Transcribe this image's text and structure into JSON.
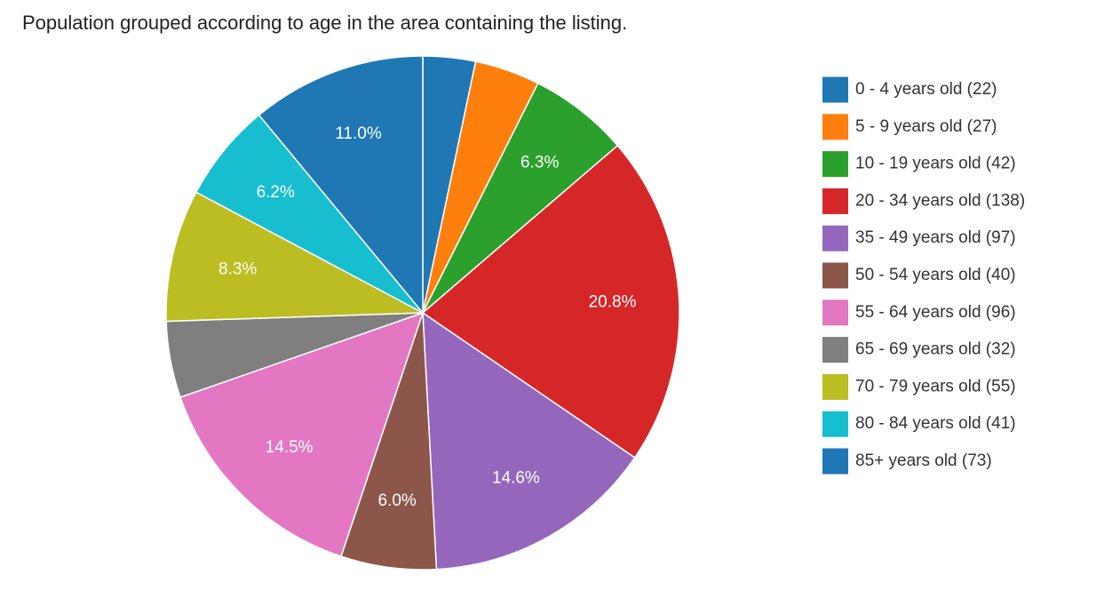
{
  "chart_data": {
    "type": "pie",
    "title": "Population grouped according to age in the area containing the listing.",
    "categories": [
      "0 - 4 years old (22)",
      "5 - 9 years old (27)",
      "10 - 19 years old (42)",
      "20 - 34 years old (138)",
      "35 - 49 years old (97)",
      "50 - 54 years old (40)",
      "55 - 64 years old (96)",
      "65 - 69 years old (32)",
      "70 - 79 years old (55)",
      "80 - 84 years old (41)",
      "85+ years old (73)"
    ],
    "values": [
      3.3,
      4.1,
      6.3,
      20.8,
      14.6,
      6.0,
      14.5,
      4.8,
      8.3,
      6.2,
      11.0
    ],
    "value_labels": [
      null,
      null,
      "6.3%",
      "20.8%",
      "14.6%",
      "6.0%",
      "14.5%",
      null,
      "8.3%",
      "6.2%",
      "11.0%"
    ],
    "colors": [
      "#1f77b4",
      "#ff7f0e",
      "#2ca02c",
      "#d62728",
      "#9467bd",
      "#8c564b",
      "#e377c2",
      "#7f7f7f",
      "#bcbd22",
      "#17becf",
      "#1f77b4"
    ],
    "legend": "right"
  }
}
